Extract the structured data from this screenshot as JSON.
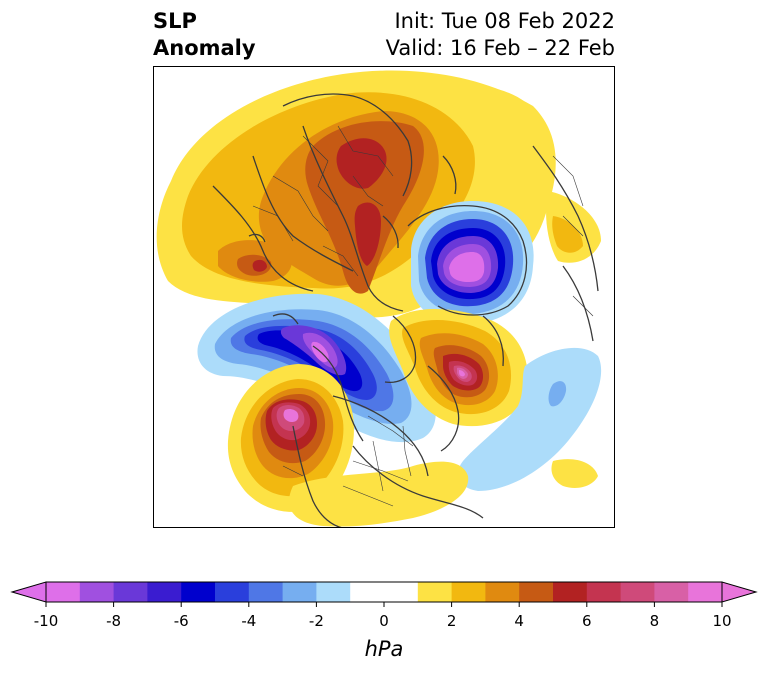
{
  "header": {
    "title_line1": "SLP",
    "title_line2": "Anomaly",
    "init_text": "Init: Tue 08 Feb 2022",
    "valid_text": "Valid: 16 Feb – 22 Feb"
  },
  "colorbar": {
    "unit": "hPa",
    "ticks": [
      "-10",
      "-8",
      "-6",
      "-4",
      "-2",
      "0",
      "2",
      "4",
      "6",
      "8",
      "10"
    ],
    "bins": [
      {
        "color": "#de6fe9"
      },
      {
        "color": "#a050e0"
      },
      {
        "color": "#6a38d8"
      },
      {
        "color": "#3a1cd0"
      },
      {
        "color": "#0000cd"
      },
      {
        "color": "#2a3fdc"
      },
      {
        "color": "#4f77e6"
      },
      {
        "color": "#76aef0"
      },
      {
        "color": "#acdcfa"
      },
      {
        "color": "#ffffff"
      },
      {
        "color": "#ffffff"
      },
      {
        "color": "#fde244"
      },
      {
        "color": "#f2b810"
      },
      {
        "color": "#e08a10"
      },
      {
        "color": "#c65a14"
      },
      {
        "color": "#b22222"
      },
      {
        "color": "#c43450"
      },
      {
        "color": "#cf4a7a"
      },
      {
        "color": "#d860a6"
      },
      {
        "color": "#e874da"
      }
    ],
    "low_arrow_color": "#de6fe9",
    "high_arrow_color": "#e874da"
  },
  "map": {
    "projection": "north-polar-stereographic",
    "field": "sea-level-pressure-anomaly"
  }
}
